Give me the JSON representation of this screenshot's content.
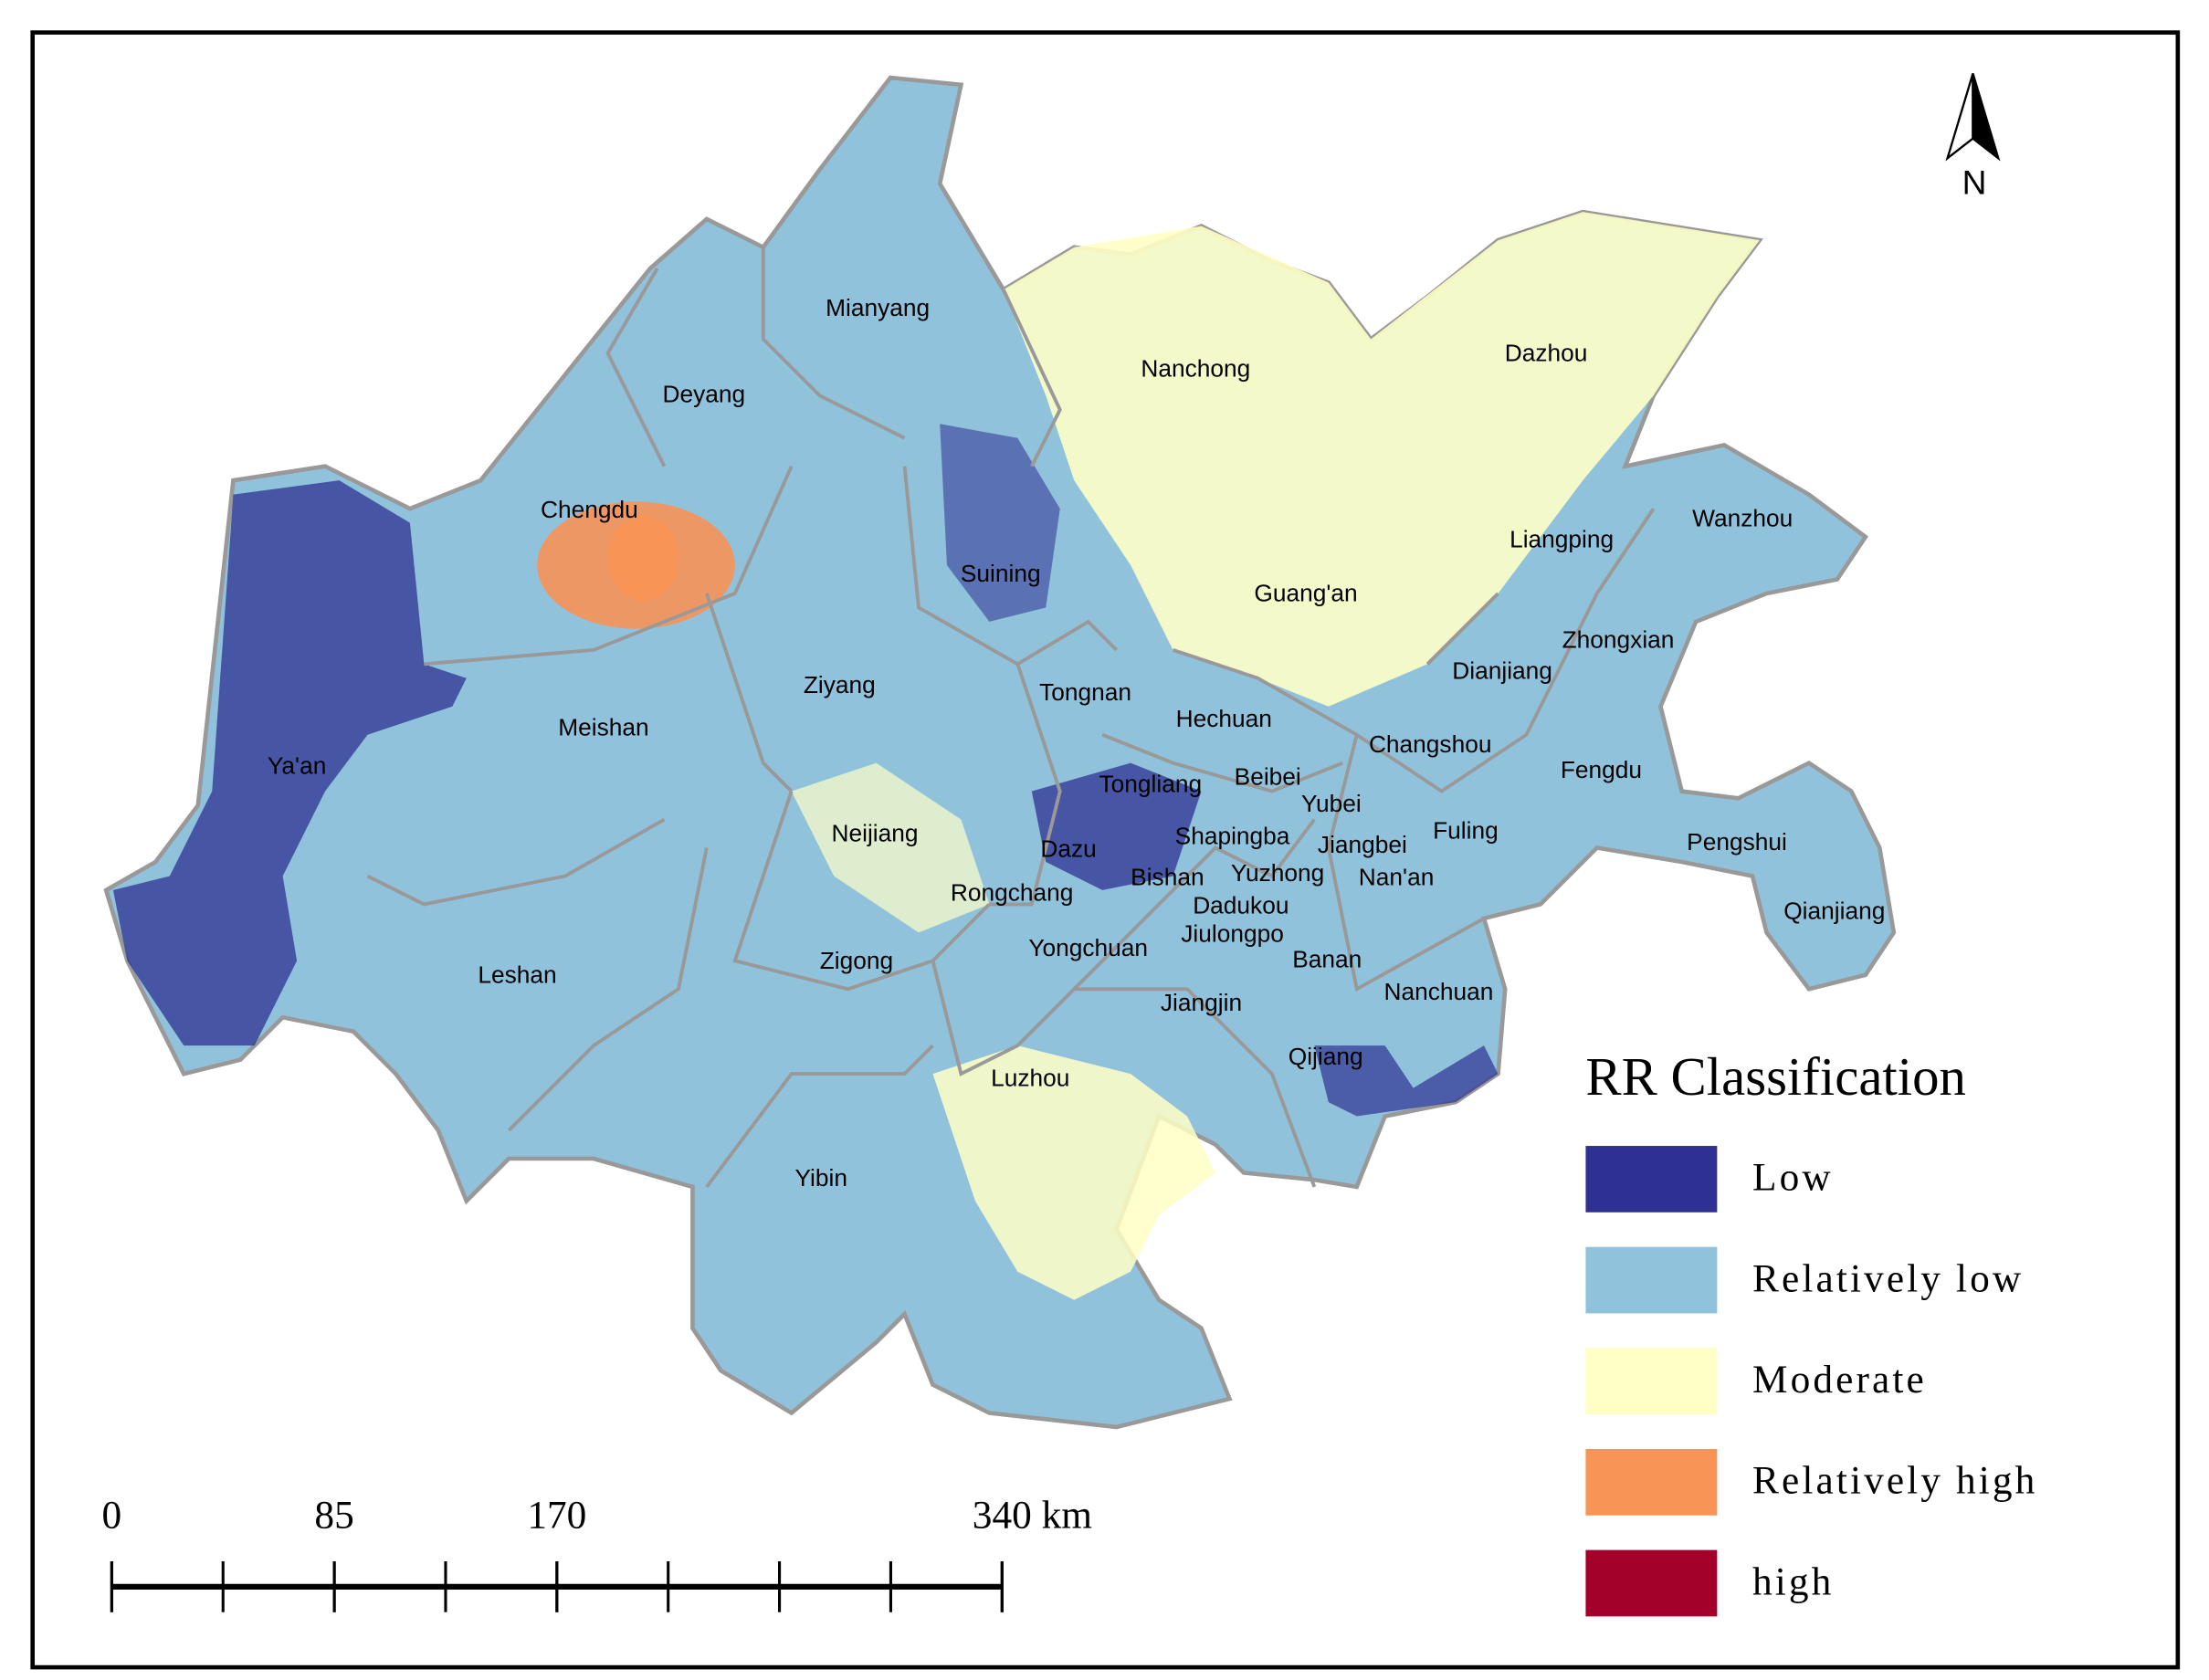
{
  "map": {
    "regions": [
      "Mianyang",
      "Nanchong",
      "Dazhou",
      "Deyang",
      "Chengdu",
      "Suining",
      "Guang'an",
      "Liangping",
      "Wanzhou",
      "Zhongxian",
      "Dianjiang",
      "Ziyang",
      "Tongnan",
      "Hechuan",
      "Meishan",
      "Ya'an",
      "Changshou",
      "Fengdu",
      "Tongliang",
      "Beibei",
      "Yubei",
      "Jiangbei",
      "Fuling",
      "Neijiang",
      "Dazu",
      "Shapingba",
      "Pengshui",
      "Bishan",
      "Yuzhong",
      "Nan'an",
      "Rongchang",
      "Dadukou",
      "Qianjiang",
      "Jiulongpo",
      "Yongchuan",
      "Zigong",
      "Banan",
      "Leshan",
      "Nanchuan",
      "Jiangjin",
      "Qijiang",
      "Luzhou",
      "Yibin"
    ],
    "legend": {
      "title": "RR Classification",
      "items": [
        {
          "label": "Low",
          "color": "#2e3192"
        },
        {
          "label": "Relatively low",
          "color": "#91c2dc"
        },
        {
          "label": "Moderate",
          "color": "#ffffc6"
        },
        {
          "label": "Relatively high",
          "color": "#f79456"
        },
        {
          "label": "high",
          "color": "#a3002a"
        }
      ]
    },
    "scale": {
      "ticks": [
        0,
        85,
        170,
        340
      ],
      "unit": "km"
    },
    "north": "N"
  }
}
